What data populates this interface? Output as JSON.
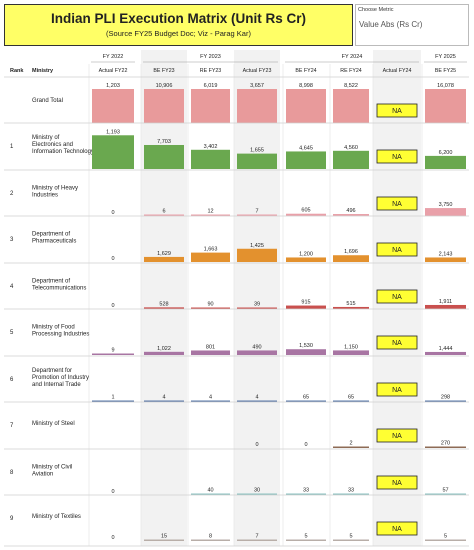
{
  "header": {
    "title": "Indian PLI Execution Matrix (Unit Rs Cr)",
    "subtitle": "(Source FY25 Budget Doc; Viz - Parag Kar)"
  },
  "metric_selector": {
    "label": "Choose Metric",
    "value": "Value Abs (Rs Cr)"
  },
  "chart_data": {
    "type": "bar",
    "title": "Indian PLI Execution Matrix (Unit Rs Cr)",
    "year_headers": [
      "FY 2022",
      "FY 2023",
      "FY 2024",
      "FY 2025"
    ],
    "column_headers": [
      "Actual FY22",
      "BE FY23",
      "RE FY23",
      "Actual FY23",
      "BE FY24",
      "RE FY24",
      "Actual FY24",
      "BE FY25"
    ],
    "rank_header": "Rank",
    "ministry_header": "Ministry",
    "na_label": "NA",
    "rows": [
      {
        "rank": "",
        "ministry": "Grand Total",
        "color": "#e89a9b",
        "values": [
          1203,
          10906,
          6019,
          3657,
          8998,
          8522,
          null,
          16078
        ],
        "labels": [
          "1,203",
          "10,906",
          "6,019",
          "3,657",
          "8,998",
          "8,522",
          "NA",
          "16,078"
        ]
      },
      {
        "rank": "1",
        "ministry": "Ministry of Electronics and Information Technology",
        "color": "#6aa84f",
        "values": [
          1193,
          7703,
          3402,
          1655,
          4645,
          4560,
          null,
          6200
        ],
        "labels": [
          "1,193",
          "7,703",
          "3,402",
          "1,655",
          "4,645",
          "4,560",
          "NA",
          "6,200"
        ]
      },
      {
        "rank": "2",
        "ministry": "Ministry of Heavy Industries",
        "color": "#e9a0a9",
        "values": [
          0,
          6,
          12,
          7,
          605,
          496,
          null,
          3750
        ],
        "labels": [
          "0",
          "6",
          "12",
          "7",
          "605",
          "496",
          "NA",
          "3,750"
        ]
      },
      {
        "rank": "3",
        "ministry": "Department of Pharmaceuticals",
        "color": "#e3912e",
        "values": [
          0,
          1629,
          1663,
          1425,
          1200,
          1696,
          null,
          2143
        ],
        "labels": [
          "0",
          "1,629",
          "1,663",
          "1,425",
          "1,200",
          "1,696",
          "NA",
          "2,143"
        ]
      },
      {
        "rank": "4",
        "ministry": "Department of Telecommunications",
        "color": "#c9504e",
        "values": [
          0,
          528,
          90,
          39,
          915,
          515,
          null,
          1911
        ],
        "labels": [
          "0",
          "528",
          "90",
          "39",
          "915",
          "515",
          "NA",
          "1,911"
        ]
      },
      {
        "rank": "5",
        "ministry": "Ministry of Food Processing Industries",
        "color": "#a875a3",
        "values": [
          9,
          1022,
          801,
          490,
          1530,
          1150,
          null,
          1444
        ],
        "labels": [
          "9",
          "1,022",
          "801",
          "490",
          "1,530",
          "1,150",
          "NA",
          "1,444"
        ]
      },
      {
        "rank": "6",
        "ministry": "Department for Promotion of Industry and Internal Trade",
        "color": "#5a78a8",
        "values": [
          1,
          4,
          4,
          4,
          65,
          65,
          null,
          298
        ],
        "labels": [
          "1",
          "4",
          "4",
          "4",
          "65",
          "65",
          "NA",
          "298"
        ]
      },
      {
        "rank": "7",
        "ministry": "Ministry of Steel",
        "color": "#8e6b55",
        "values": [
          0,
          null,
          null,
          0,
          0,
          2,
          null,
          270
        ],
        "labels": [
          "",
          "",
          "",
          "0",
          "0",
          "2",
          "NA",
          "270"
        ]
      },
      {
        "rank": "8",
        "ministry": "Ministry of Civil Aviation",
        "color": "#8ec2c0",
        "values": [
          0,
          null,
          40,
          30,
          33,
          33,
          null,
          57
        ],
        "labels": [
          "0",
          "",
          "40",
          "30",
          "33",
          "33",
          "NA",
          "57"
        ]
      },
      {
        "rank": "9",
        "ministry": "Ministry of Textiles",
        "color": "#b8aea8",
        "values": [
          0,
          15,
          8,
          7,
          5,
          5,
          null,
          5
        ],
        "labels": [
          "0",
          "15",
          "8",
          "7",
          "5",
          "5",
          "NA",
          "5"
        ]
      }
    ]
  }
}
